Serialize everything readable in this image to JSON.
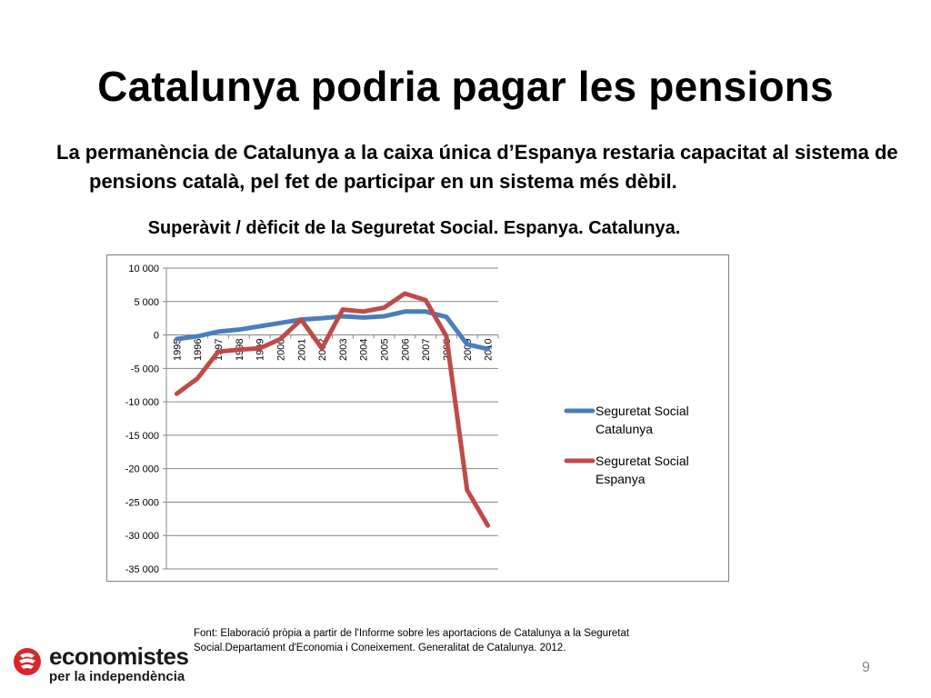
{
  "slide": {
    "title": "Catalunya podria pagar les pensions",
    "lead": "La permanència de Catalunya a la caixa única d’Espanya restaria capacitat al sistema de pensions català, pel fet de participar en un sistema més dèbil.",
    "source": "Font: Elaboració pròpia a partir de l'Informe sobre les aportacions de Catalunya a la Seguretat Social.Departament d'Economia i Coneixement. Generalitat de Catalunya. 2012.",
    "page_number": "9"
  },
  "logo": {
    "name": "economistes",
    "tagline": "per la independència",
    "icon": "logo-mark-icon",
    "color": "#d9262b"
  },
  "chart_data": {
    "type": "line",
    "title": "Superàvit / dèficit de la Seguretat Social. Espanya. Catalunya.",
    "categories": [
      "1995",
      "1996",
      "1997",
      "1998",
      "1999",
      "2000",
      "2001",
      "2002",
      "2003",
      "2004",
      "2005",
      "2006",
      "2007",
      "2008",
      "2009",
      "2010"
    ],
    "ylim": [
      -35000,
      10000
    ],
    "yticks": [
      10000,
      5000,
      0,
      -5000,
      -10000,
      -15000,
      -20000,
      -25000,
      -30000,
      -35000
    ],
    "ytick_labels": [
      "10 000",
      "5 000",
      "0",
      "-5 000",
      "-10 000",
      "-15 000",
      "-20 000",
      "-25 000",
      "-30 000",
      "-35 000"
    ],
    "grid": true,
    "legend": "right",
    "series": [
      {
        "name": "Seguretat Social Catalunya",
        "color": "#4a7ebb",
        "values": [
          -600,
          -200,
          500,
          800,
          1300,
          1800,
          2300,
          2500,
          2800,
          2600,
          2800,
          3500,
          3500,
          2700,
          -1400,
          -2100
        ]
      },
      {
        "name": "Seguretat Social Espanya",
        "color": "#be4b48",
        "values": [
          -8800,
          -6500,
          -2500,
          -2200,
          -2000,
          -600,
          2300,
          -2000,
          3800,
          3500,
          4100,
          6200,
          5200,
          -200,
          -23200,
          -28500
        ]
      }
    ]
  }
}
